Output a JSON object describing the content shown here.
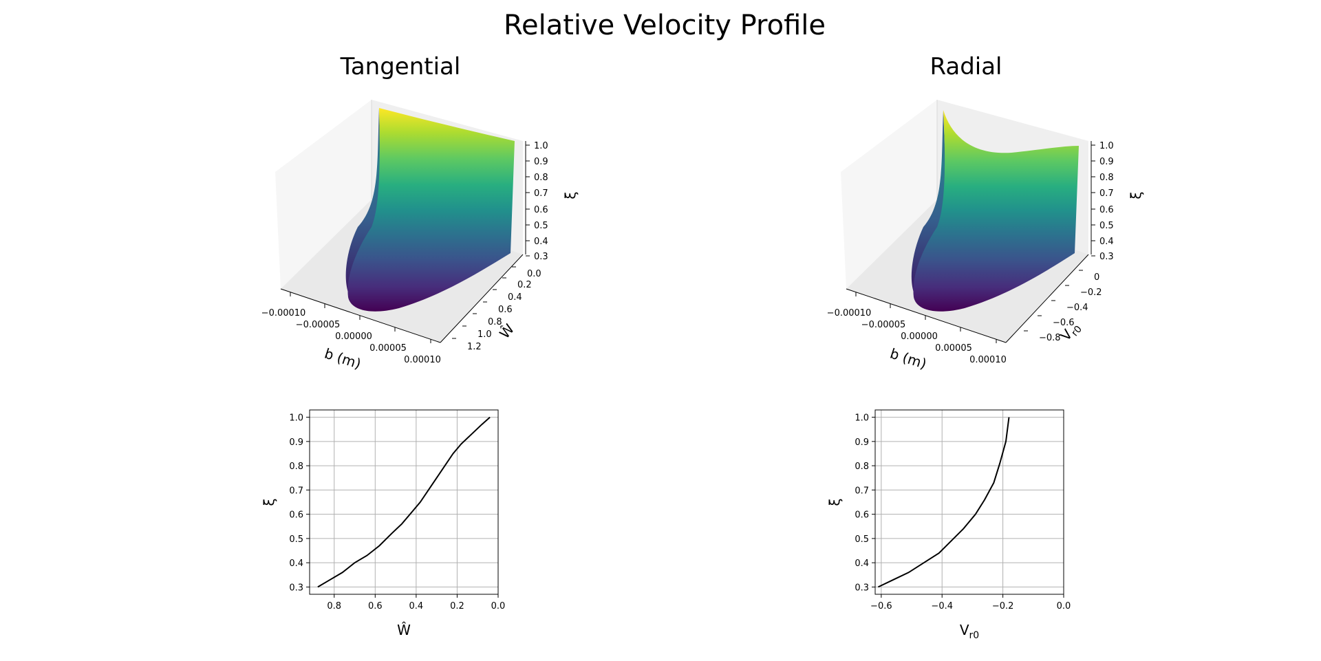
{
  "figure": {
    "title": "Relative Velocity Profile"
  },
  "colors": {
    "line": "#000000",
    "grid": "#b0b0b0",
    "pane": "#f2f2f2",
    "pane_dark": "#e6e6e6",
    "viridis": [
      "#440154",
      "#472d7b",
      "#3b528b",
      "#2c728e",
      "#21918c",
      "#28ae80",
      "#5ec962",
      "#addc30",
      "#fde725"
    ]
  },
  "chart_data": [
    {
      "type": "surface3d",
      "title": "Tangential",
      "xlabel": "b (m)",
      "ylabel": "Ŵ",
      "zlabel": "ξ",
      "xticks": [
        "−0.00010",
        "−0.00005",
        "0.00000",
        "0.00005",
        "0.00010"
      ],
      "yticks": [
        "0.0",
        "0.2",
        "0.4",
        "0.6",
        "0.8",
        "1.0",
        "1.2"
      ],
      "zticks": [
        "0.3",
        "0.4",
        "0.5",
        "0.6",
        "0.7",
        "0.8",
        "0.9",
        "1.0"
      ],
      "xlim": [
        -0.0001,
        0.0001
      ],
      "ylim": [
        0,
        1.3
      ],
      "zlim": [
        0.3,
        1.0
      ],
      "colormap": "viridis"
    },
    {
      "type": "surface3d",
      "title": "Radial",
      "xlabel": "b (m)",
      "ylabel": "V_r0",
      "zlabel": "ξ",
      "xticks": [
        "−0.00010",
        "−0.00005",
        "0.00000",
        "0.00005",
        "0.00010"
      ],
      "yticks": [
        "0",
        "−0.2",
        "−0.4",
        "−0.6",
        "−0.8"
      ],
      "zticks": [
        "0.3",
        "0.4",
        "0.5",
        "0.6",
        "0.7",
        "0.8",
        "0.9",
        "1.0"
      ],
      "xlim": [
        -0.0001,
        0.0001
      ],
      "ylim": [
        0,
        -0.9
      ],
      "zlim": [
        0.3,
        1.0
      ],
      "colormap": "viridis"
    },
    {
      "type": "line",
      "xlabel": "Ŵ",
      "ylabel": "ξ",
      "xlim": [
        0.92,
        0.0
      ],
      "ylim": [
        0.27,
        1.03
      ],
      "xticks": [
        0.8,
        0.6,
        0.4,
        0.2,
        0.0
      ],
      "yticks": [
        0.3,
        0.4,
        0.5,
        0.6,
        0.7,
        0.8,
        0.9,
        1.0
      ],
      "grid": true,
      "series": [
        {
          "x": [
            0.88,
            0.82,
            0.76,
            0.7,
            0.64,
            0.58,
            0.52,
            0.47,
            0.42,
            0.38,
            0.34,
            0.3,
            0.26,
            0.22,
            0.18,
            0.13,
            0.08,
            0.04
          ],
          "y": [
            0.3,
            0.33,
            0.36,
            0.4,
            0.43,
            0.47,
            0.52,
            0.56,
            0.61,
            0.65,
            0.7,
            0.75,
            0.8,
            0.85,
            0.89,
            0.93,
            0.97,
            1.0
          ]
        }
      ]
    },
    {
      "type": "line",
      "xlabel": "V_r0",
      "ylabel": "ξ",
      "xlim": [
        -0.62,
        0.0
      ],
      "ylim": [
        0.27,
        1.03
      ],
      "xticks": [
        -0.6,
        -0.4,
        -0.2,
        0.0
      ],
      "yticks": [
        0.3,
        0.4,
        0.5,
        0.6,
        0.7,
        0.8,
        0.9,
        1.0
      ],
      "grid": true,
      "series": [
        {
          "x": [
            -0.61,
            -0.56,
            -0.51,
            -0.46,
            -0.41,
            -0.37,
            -0.33,
            -0.29,
            -0.26,
            -0.23,
            -0.21,
            -0.19,
            -0.18
          ],
          "y": [
            0.3,
            0.33,
            0.36,
            0.4,
            0.44,
            0.49,
            0.54,
            0.6,
            0.66,
            0.73,
            0.81,
            0.9,
            1.0
          ]
        }
      ]
    }
  ]
}
